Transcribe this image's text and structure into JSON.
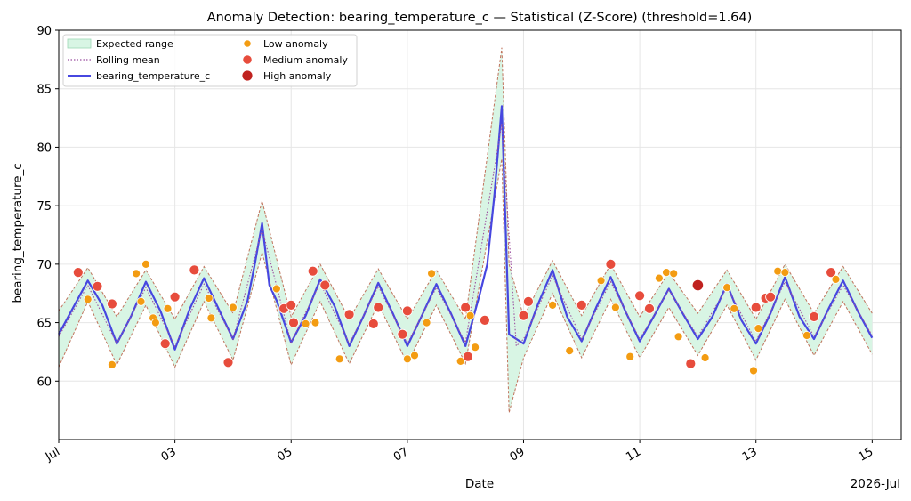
{
  "chart_data": {
    "type": "line",
    "title": "Anomaly Detection: bearing_temperature_c — Statistical (Z-Score) (threshold=1.64)",
    "xlabel": "Date",
    "ylabel": "bearing_temperature_c",
    "x_offset_label": "2026-Jul",
    "xlim": [
      "2026-07-01T00:00",
      "2026-07-15T12:00"
    ],
    "ylim": [
      55,
      90
    ],
    "x_ticks": [
      {
        "value": "2026-07-01",
        "label": "Jul"
      },
      {
        "value": "2026-07-03",
        "label": "03"
      },
      {
        "value": "2026-07-05",
        "label": "05"
      },
      {
        "value": "2026-07-07",
        "label": "07"
      },
      {
        "value": "2026-07-09",
        "label": "09"
      },
      {
        "value": "2026-07-11",
        "label": "11"
      },
      {
        "value": "2026-07-13",
        "label": "13"
      },
      {
        "value": "2026-07-15",
        "label": "15"
      }
    ],
    "y_ticks": [
      {
        "value": 60,
        "label": "60"
      },
      {
        "value": 65,
        "label": "65"
      },
      {
        "value": 70,
        "label": "70"
      },
      {
        "value": 75,
        "label": "75"
      },
      {
        "value": 80,
        "label": "80"
      },
      {
        "value": 85,
        "label": "85"
      },
      {
        "value": 90,
        "label": "90"
      }
    ],
    "grid": true,
    "legend": {
      "placement": "top-left",
      "entries": [
        {
          "label": "Expected range",
          "kind": "band"
        },
        {
          "label": "Rolling mean",
          "kind": "dotted-line"
        },
        {
          "label": "bearing_temperature_c",
          "kind": "line"
        },
        {
          "label": "Low anomaly",
          "kind": "marker-low"
        },
        {
          "label": "Medium anomaly",
          "kind": "marker-medium"
        },
        {
          "label": "High anomaly",
          "kind": "marker-high"
        }
      ]
    },
    "colors": {
      "line": "#4747e0",
      "band_fill": "#d8f5e4",
      "band_edge": "#c0735c",
      "rolling_mean": "#9b4fa0",
      "low": "#f39c12",
      "medium": "#e74c3c",
      "high": "#c0221f",
      "grid": "#e6e6e6"
    },
    "series": [
      {
        "name": "bearing_temperature_c",
        "x": [
          "2026-07-01T00:00",
          "2026-07-01T06:00",
          "2026-07-01T12:00",
          "2026-07-01T18:00",
          "2026-07-02T00:00",
          "2026-07-02T06:00",
          "2026-07-02T12:00",
          "2026-07-02T18:00",
          "2026-07-03T00:00",
          "2026-07-03T06:00",
          "2026-07-03T12:00",
          "2026-07-03T18:00",
          "2026-07-04T00:00",
          "2026-07-04T06:00",
          "2026-07-04T09:00",
          "2026-07-04T12:00",
          "2026-07-04T15:00",
          "2026-07-04T18:00",
          "2026-07-05T00:00",
          "2026-07-05T06:00",
          "2026-07-05T12:00",
          "2026-07-05T18:00",
          "2026-07-06T00:00",
          "2026-07-06T06:00",
          "2026-07-06T12:00",
          "2026-07-06T18:00",
          "2026-07-07T00:00",
          "2026-07-07T06:00",
          "2026-07-07T12:00",
          "2026-07-07T18:00",
          "2026-07-08T00:00",
          "2026-07-08T06:00",
          "2026-07-08T09:00",
          "2026-07-08T12:00",
          "2026-07-08T15:00",
          "2026-07-08T18:00",
          "2026-07-09T00:00",
          "2026-07-09T06:00",
          "2026-07-09T12:00",
          "2026-07-09T18:00",
          "2026-07-10T00:00",
          "2026-07-10T06:00",
          "2026-07-10T12:00",
          "2026-07-10T18:00",
          "2026-07-11T00:00",
          "2026-07-11T06:00",
          "2026-07-11T12:00",
          "2026-07-11T18:00",
          "2026-07-12T00:00",
          "2026-07-12T06:00",
          "2026-07-12T12:00",
          "2026-07-12T18:00",
          "2026-07-13T00:00",
          "2026-07-13T06:00",
          "2026-07-13T12:00",
          "2026-07-13T18:00",
          "2026-07-14T00:00",
          "2026-07-14T06:00",
          "2026-07-14T12:00",
          "2026-07-14T18:00",
          "2026-07-15T00:00"
        ],
        "values": [
          64.0,
          66.3,
          68.6,
          66.5,
          63.2,
          65.6,
          68.5,
          66.0,
          62.7,
          66.1,
          68.8,
          66.2,
          63.6,
          66.9,
          70.0,
          73.5,
          68.2,
          66.9,
          63.3,
          65.6,
          68.7,
          66.4,
          63.0,
          65.6,
          68.4,
          65.8,
          63.0,
          65.6,
          68.3,
          65.8,
          63.0,
          67.5,
          70.0,
          76.0,
          83.5,
          64.0,
          63.2,
          66.6,
          69.5,
          65.5,
          63.4,
          66.3,
          68.9,
          66.0,
          63.4,
          65.6,
          67.9,
          65.7,
          63.6,
          65.5,
          68.3,
          65.2,
          63.2,
          65.8,
          68.9,
          65.5,
          63.6,
          66.2,
          68.6,
          66.0,
          63.7
        ]
      },
      {
        "name": "Rolling mean",
        "x": [
          "2026-07-01T00:00",
          "2026-07-01T12:00",
          "2026-07-02T00:00",
          "2026-07-02T12:00",
          "2026-07-03T00:00",
          "2026-07-03T12:00",
          "2026-07-04T00:00",
          "2026-07-04T12:00",
          "2026-07-05T00:00",
          "2026-07-05T12:00",
          "2026-07-06T00:00",
          "2026-07-06T12:00",
          "2026-07-07T00:00",
          "2026-07-07T12:00",
          "2026-07-08T00:00",
          "2026-07-08T15:00",
          "2026-07-08T21:00",
          "2026-07-09T00:00",
          "2026-07-09T12:00",
          "2026-07-10T00:00",
          "2026-07-10T12:00",
          "2026-07-11T00:00",
          "2026-07-11T12:00",
          "2026-07-12T00:00",
          "2026-07-12T12:00",
          "2026-07-13T00:00",
          "2026-07-13T12:00",
          "2026-07-14T00:00",
          "2026-07-14T12:00",
          "2026-07-15T00:00"
        ],
        "values": [
          63.8,
          68.2,
          63.2,
          68.0,
          63.0,
          68.3,
          63.6,
          73.0,
          63.3,
          68.4,
          63.2,
          68.1,
          63.2,
          68.0,
          63.3,
          82.0,
          63.0,
          63.6,
          69.0,
          63.6,
          68.5,
          63.6,
          67.8,
          63.8,
          68.0,
          63.4,
          68.5,
          63.8,
          68.2,
          63.9
        ]
      }
    ],
    "expected_range": {
      "x": [
        "2026-07-01T00:00",
        "2026-07-01T12:00",
        "2026-07-02T00:00",
        "2026-07-02T12:00",
        "2026-07-03T00:00",
        "2026-07-03T12:00",
        "2026-07-04T00:00",
        "2026-07-04T12:00",
        "2026-07-05T00:00",
        "2026-07-05T12:00",
        "2026-07-06T00:00",
        "2026-07-06T12:00",
        "2026-07-07T00:00",
        "2026-07-07T12:00",
        "2026-07-08T00:00",
        "2026-07-08T15:00",
        "2026-07-08T18:00",
        "2026-07-09T00:00",
        "2026-07-09T12:00",
        "2026-07-10T00:00",
        "2026-07-10T12:00",
        "2026-07-11T00:00",
        "2026-07-11T12:00",
        "2026-07-12T00:00",
        "2026-07-12T12:00",
        "2026-07-13T00:00",
        "2026-07-13T12:00",
        "2026-07-14T00:00",
        "2026-07-14T12:00",
        "2026-07-15T00:00"
      ],
      "lower": [
        61.2,
        66.8,
        61.4,
        66.5,
        61.2,
        66.8,
        61.8,
        71.0,
        61.4,
        66.8,
        61.5,
        66.6,
        61.5,
        66.5,
        61.5,
        79.0,
        57.3,
        62.0,
        67.5,
        62.0,
        67.0,
        62.0,
        66.3,
        62.2,
        66.5,
        61.8,
        67.0,
        62.2,
        66.8,
        62.3
      ],
      "upper": [
        66.0,
        69.7,
        65.5,
        69.5,
        65.3,
        69.8,
        65.8,
        75.4,
        65.5,
        70.0,
        65.3,
        69.6,
        65.3,
        69.5,
        65.3,
        88.5,
        70.0,
        65.5,
        70.3,
        65.6,
        70.0,
        65.5,
        69.3,
        65.8,
        69.5,
        65.3,
        70.0,
        65.8,
        69.8,
        65.8
      ]
    },
    "anomalies": [
      {
        "x": "2026-07-01T08:00",
        "y": 69.3,
        "severity": "medium"
      },
      {
        "x": "2026-07-01T12:00",
        "y": 67.0,
        "severity": "low"
      },
      {
        "x": "2026-07-01T16:00",
        "y": 68.1,
        "severity": "medium"
      },
      {
        "x": "2026-07-01T22:00",
        "y": 61.4,
        "severity": "low"
      },
      {
        "x": "2026-07-01T22:00",
        "y": 66.6,
        "severity": "medium"
      },
      {
        "x": "2026-07-02T08:00",
        "y": 69.2,
        "severity": "low"
      },
      {
        "x": "2026-07-02T10:00",
        "y": 66.8,
        "severity": "low"
      },
      {
        "x": "2026-07-02T12:00",
        "y": 70.0,
        "severity": "low"
      },
      {
        "x": "2026-07-02T15:00",
        "y": 65.4,
        "severity": "low"
      },
      {
        "x": "2026-07-02T16:00",
        "y": 65.0,
        "severity": "low"
      },
      {
        "x": "2026-07-02T20:00",
        "y": 63.2,
        "severity": "medium"
      },
      {
        "x": "2026-07-02T21:00",
        "y": 66.2,
        "severity": "low"
      },
      {
        "x": "2026-07-03T00:00",
        "y": 67.2,
        "severity": "medium"
      },
      {
        "x": "2026-07-03T08:00",
        "y": 69.5,
        "severity": "medium"
      },
      {
        "x": "2026-07-03T14:00",
        "y": 67.1,
        "severity": "low"
      },
      {
        "x": "2026-07-03T15:00",
        "y": 65.4,
        "severity": "low"
      },
      {
        "x": "2026-07-03T22:00",
        "y": 61.6,
        "severity": "medium"
      },
      {
        "x": "2026-07-04T00:00",
        "y": 66.3,
        "severity": "low"
      },
      {
        "x": "2026-07-04T18:00",
        "y": 67.9,
        "severity": "low"
      },
      {
        "x": "2026-07-04T21:00",
        "y": 66.2,
        "severity": "medium"
      },
      {
        "x": "2026-07-05T00:00",
        "y": 66.5,
        "severity": "medium"
      },
      {
        "x": "2026-07-05T01:00",
        "y": 65.0,
        "severity": "medium"
      },
      {
        "x": "2026-07-05T06:00",
        "y": 64.9,
        "severity": "low"
      },
      {
        "x": "2026-07-05T09:00",
        "y": 69.4,
        "severity": "medium"
      },
      {
        "x": "2026-07-05T10:00",
        "y": 65.0,
        "severity": "low"
      },
      {
        "x": "2026-07-05T14:00",
        "y": 68.2,
        "severity": "medium"
      },
      {
        "x": "2026-07-05T20:00",
        "y": 61.9,
        "severity": "low"
      },
      {
        "x": "2026-07-06T00:00",
        "y": 65.7,
        "severity": "medium"
      },
      {
        "x": "2026-07-06T10:00",
        "y": 64.9,
        "severity": "medium"
      },
      {
        "x": "2026-07-06T12:00",
        "y": 66.3,
        "severity": "medium"
      },
      {
        "x": "2026-07-06T22:00",
        "y": 64.0,
        "severity": "medium"
      },
      {
        "x": "2026-07-07T00:00",
        "y": 61.9,
        "severity": "low"
      },
      {
        "x": "2026-07-07T00:00",
        "y": 66.0,
        "severity": "medium"
      },
      {
        "x": "2026-07-07T03:00",
        "y": 62.2,
        "severity": "low"
      },
      {
        "x": "2026-07-07T08:00",
        "y": 65.0,
        "severity": "low"
      },
      {
        "x": "2026-07-07T10:00",
        "y": 69.2,
        "severity": "low"
      },
      {
        "x": "2026-07-07T22:00",
        "y": 61.7,
        "severity": "low"
      },
      {
        "x": "2026-07-08T00:00",
        "y": 66.3,
        "severity": "medium"
      },
      {
        "x": "2026-07-08T01:00",
        "y": 62.1,
        "severity": "medium"
      },
      {
        "x": "2026-07-08T02:00",
        "y": 65.6,
        "severity": "low"
      },
      {
        "x": "2026-07-08T04:00",
        "y": 62.9,
        "severity": "low"
      },
      {
        "x": "2026-07-08T08:00",
        "y": 65.2,
        "severity": "medium"
      },
      {
        "x": "2026-07-09T00:00",
        "y": 65.6,
        "severity": "medium"
      },
      {
        "x": "2026-07-09T02:00",
        "y": 66.8,
        "severity": "medium"
      },
      {
        "x": "2026-07-09T12:00",
        "y": 66.5,
        "severity": "low"
      },
      {
        "x": "2026-07-09T19:00",
        "y": 62.6,
        "severity": "low"
      },
      {
        "x": "2026-07-10T00:00",
        "y": 66.5,
        "severity": "medium"
      },
      {
        "x": "2026-07-10T08:00",
        "y": 68.6,
        "severity": "low"
      },
      {
        "x": "2026-07-10T12:00",
        "y": 70.0,
        "severity": "medium"
      },
      {
        "x": "2026-07-10T14:00",
        "y": 66.3,
        "severity": "low"
      },
      {
        "x": "2026-07-10T20:00",
        "y": 62.1,
        "severity": "low"
      },
      {
        "x": "2026-07-11T00:00",
        "y": 67.3,
        "severity": "medium"
      },
      {
        "x": "2026-07-11T04:00",
        "y": 66.2,
        "severity": "medium"
      },
      {
        "x": "2026-07-11T08:00",
        "y": 68.8,
        "severity": "low"
      },
      {
        "x": "2026-07-11T11:00",
        "y": 69.3,
        "severity": "low"
      },
      {
        "x": "2026-07-11T14:00",
        "y": 69.2,
        "severity": "low"
      },
      {
        "x": "2026-07-11T16:00",
        "y": 63.8,
        "severity": "low"
      },
      {
        "x": "2026-07-11T21:00",
        "y": 61.5,
        "severity": "medium"
      },
      {
        "x": "2026-07-12T00:00",
        "y": 68.2,
        "severity": "high"
      },
      {
        "x": "2026-07-12T03:00",
        "y": 62.0,
        "severity": "low"
      },
      {
        "x": "2026-07-12T12:00",
        "y": 68.0,
        "severity": "low"
      },
      {
        "x": "2026-07-12T15:00",
        "y": 66.2,
        "severity": "low"
      },
      {
        "x": "2026-07-12T23:00",
        "y": 60.9,
        "severity": "low"
      },
      {
        "x": "2026-07-13T00:00",
        "y": 66.3,
        "severity": "medium"
      },
      {
        "x": "2026-07-13T01:00",
        "y": 64.5,
        "severity": "low"
      },
      {
        "x": "2026-07-13T04:00",
        "y": 67.1,
        "severity": "medium"
      },
      {
        "x": "2026-07-13T06:00",
        "y": 67.2,
        "severity": "medium"
      },
      {
        "x": "2026-07-13T09:00",
        "y": 69.4,
        "severity": "low"
      },
      {
        "x": "2026-07-13T12:00",
        "y": 69.3,
        "severity": "low"
      },
      {
        "x": "2026-07-13T21:00",
        "y": 63.9,
        "severity": "low"
      },
      {
        "x": "2026-07-14T00:00",
        "y": 65.5,
        "severity": "medium"
      },
      {
        "x": "2026-07-14T07:00",
        "y": 69.3,
        "severity": "medium"
      },
      {
        "x": "2026-07-14T09:00",
        "y": 68.7,
        "severity": "low"
      }
    ]
  }
}
